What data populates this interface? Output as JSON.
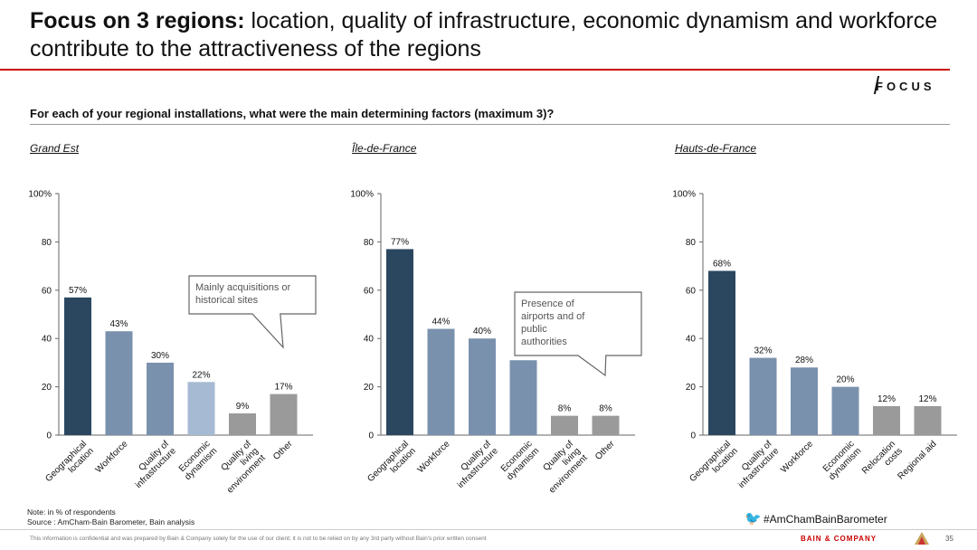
{
  "header": {
    "title_bold": "Focus on 3 regions:",
    "title_rest": " location, quality of infrastructure, economic dynamism and workforce contribute to the attractiveness of the regions",
    "brand": "FOCUS"
  },
  "question": "For each of your regional  installations, what were the main determining factors (maximum 3)?",
  "footer": {
    "note": "Note: in % of respondents",
    "source": "Source : AmCham-Bain Barometer, Bain analysis",
    "hashtag": "#AmChamBainBarometer",
    "disclaimer": "This information is confidential and was prepared by Bain & Company solely for the use of our client; it is not to be relied on by any 3rd party without Bain's prior written consent",
    "company": "BAIN & COMPANY",
    "page_number": "35"
  },
  "chart_data": [
    {
      "type": "bar",
      "title": "Grand Est",
      "categories": [
        "Geographical location",
        "Workforce",
        "Quality of infrastructure",
        "Economic dynamism",
        "Quality of living environment",
        "Other"
      ],
      "values": [
        57,
        43,
        30,
        22,
        9,
        17
      ],
      "value_labels": [
        "57%",
        "43%",
        "30%",
        "22%",
        "9%",
        "17%"
      ],
      "colors": [
        "#2b4760",
        "#7a91ad",
        "#7a91ad",
        "#a7bad3",
        "#9a9a9a",
        "#9a9a9a"
      ],
      "y_ticks": [
        "0",
        "20",
        "40",
        "60",
        "80",
        "100%"
      ],
      "ylim": [
        0,
        100
      ],
      "annotation": "Mainly acquisitions or historical sites"
    },
    {
      "type": "bar",
      "title": "Île-de-France",
      "categories": [
        "Geographical location",
        "Workforce",
        "Quality of infrastructure",
        "Economic dynamism",
        "Quality of living environment",
        "Other"
      ],
      "values": [
        77,
        44,
        40,
        31,
        8,
        8
      ],
      "value_labels": [
        "77%",
        "44%",
        "40%",
        "31%",
        "8%",
        "8%"
      ],
      "colors": [
        "#2b4760",
        "#7a91ad",
        "#7a91ad",
        "#7a91ad",
        "#9a9a9a",
        "#9a9a9a"
      ],
      "y_ticks": [
        "0",
        "20",
        "40",
        "60",
        "80",
        "100%"
      ],
      "ylim": [
        0,
        100
      ],
      "annotation": "Presence of airports and of public authorities"
    },
    {
      "type": "bar",
      "title": "Hauts-de-France",
      "categories": [
        "Geographical location",
        "Quality of infrastructure",
        "Workforce",
        "Economic dynamism",
        "Relocation costs",
        "Regional aid"
      ],
      "values": [
        68,
        32,
        28,
        20,
        12,
        12
      ],
      "value_labels": [
        "68%",
        "32%",
        "28%",
        "20%",
        "12%",
        "12%"
      ],
      "colors": [
        "#2b4760",
        "#7a91ad",
        "#7a91ad",
        "#7a91ad",
        "#9a9a9a",
        "#9a9a9a"
      ],
      "y_ticks": [
        "0",
        "20",
        "40",
        "60",
        "80",
        "100%"
      ],
      "ylim": [
        0,
        100
      ],
      "annotation": ""
    }
  ]
}
